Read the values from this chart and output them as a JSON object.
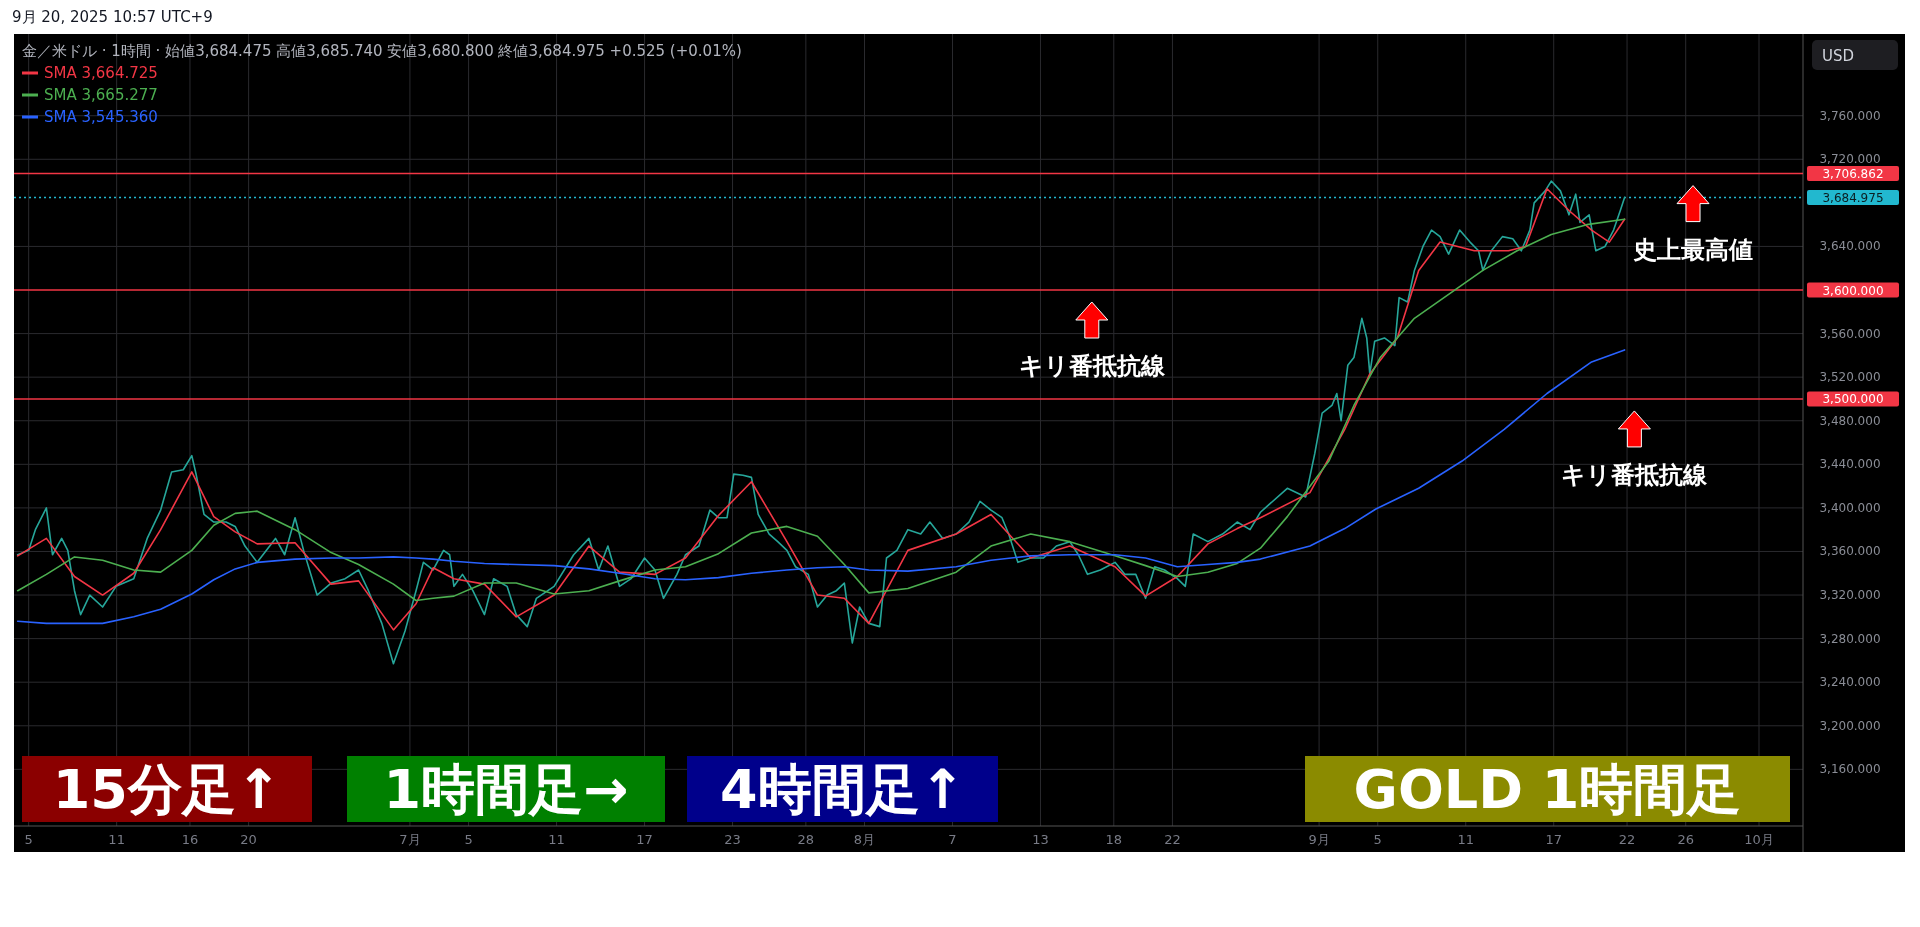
{
  "chart_data": {
    "type": "line",
    "title": "金／米ドル · 1時間 · 始値3,684.475 高値3,685.740 安値3,680.800 終値3,684.975 +0.525 (+0.01%)",
    "subtitle": "9月 20, 2025 10:57 UTC+9",
    "ylabel": "USD",
    "xlim": [
      "2025-06-04T00:00",
      "2025-10-04T00:00"
    ],
    "xticks": [
      {
        "value": "2025-06-05",
        "label": "5"
      },
      {
        "value": "2025-06-11",
        "label": "11"
      },
      {
        "value": "2025-06-16",
        "label": "16"
      },
      {
        "value": "2025-06-20",
        "label": "20"
      },
      {
        "value": "2025-07-01",
        "label": "7月"
      },
      {
        "value": "2025-07-05",
        "label": "5"
      },
      {
        "value": "2025-07-11",
        "label": "11"
      },
      {
        "value": "2025-07-17",
        "label": "17"
      },
      {
        "value": "2025-07-23",
        "label": "23"
      },
      {
        "value": "2025-07-28",
        "label": "28"
      },
      {
        "value": "2025-08-01",
        "label": "8月"
      },
      {
        "value": "2025-08-07",
        "label": "7"
      },
      {
        "value": "2025-08-13",
        "label": "13"
      },
      {
        "value": "2025-08-18",
        "label": "18"
      },
      {
        "value": "2025-08-22",
        "label": "22"
      },
      {
        "value": "2025-09-01",
        "label": "9月"
      },
      {
        "value": "2025-09-05",
        "label": "5"
      },
      {
        "value": "2025-09-11",
        "label": "11"
      },
      {
        "value": "2025-09-17",
        "label": "17"
      },
      {
        "value": "2025-09-22",
        "label": "22"
      },
      {
        "value": "2025-09-26",
        "label": "26"
      },
      {
        "value": "2025-10-01",
        "label": "10月"
      }
    ],
    "ylim": [
      3108,
      3835
    ],
    "yticks": [
      {
        "value": 3160,
        "label": "3,160.000"
      },
      {
        "value": 3200,
        "label": "3,200.000"
      },
      {
        "value": 3240,
        "label": "3,240.000"
      },
      {
        "value": 3280,
        "label": "3,280.000"
      },
      {
        "value": 3320,
        "label": "3,320.000"
      },
      {
        "value": 3360,
        "label": "3,360.000"
      },
      {
        "value": 3400,
        "label": "3,400.000"
      },
      {
        "value": 3440,
        "label": "3,440.000"
      },
      {
        "value": 3480,
        "label": "3,480.000"
      },
      {
        "value": 3520,
        "label": "3,520.000"
      },
      {
        "value": 3560,
        "label": "3,560.000"
      },
      {
        "value": 3640,
        "label": "3,640.000"
      },
      {
        "value": 3720,
        "label": "3,720.000"
      },
      {
        "value": 3760,
        "label": "3,760.000"
      }
    ],
    "grid": true,
    "legend": "top left",
    "series": [
      {
        "color": "#26a69a",
        "x": [
          "2025-06-04T06:00",
          "2025-06-05T00:00",
          "2025-06-05T11:00",
          "2025-06-06T05:00",
          "2025-06-06T15:00",
          "2025-06-07T06:00",
          "2025-06-07T16:00",
          "2025-06-08T03:00",
          "2025-06-08T13:00",
          "2025-06-09T04:00",
          "2025-06-10T01:00",
          "2025-06-10T23:00",
          "2025-06-12T04:00",
          "2025-06-13T02:00",
          "2025-06-14T00:00",
          "2025-06-14T18:00",
          "2025-06-15T13:00",
          "2025-06-16T03:00",
          "2025-06-16T10:00",
          "2025-06-16T23:00",
          "2025-06-17T15:00",
          "2025-06-18T11:00",
          "2025-06-19T02:00",
          "2025-06-19T18:00",
          "2025-06-20T14:00",
          "2025-06-21T20:00",
          "2025-06-22T11:00",
          "2025-06-23T04:00",
          "2025-06-23T18:00",
          "2025-06-24T16:00",
          "2025-06-25T15:00",
          "2025-06-26T14:00",
          "2025-06-27T12:00",
          "2025-06-28T04:00",
          "2025-06-29T02:00",
          "2025-06-29T21:00",
          "2025-06-30T16:00",
          "2025-07-01T10:00",
          "2025-07-01T22:00",
          "2025-07-02T14:00",
          "2025-07-03T07:00",
          "2025-07-03T17:00",
          "2025-07-04T00:00",
          "2025-07-04T14:00",
          "2025-07-05T07:00",
          "2025-07-06T02:00",
          "2025-07-06T17:00",
          "2025-07-07T15:00",
          "2025-07-08T06:00",
          "2025-07-09T00:00",
          "2025-07-09T15:00",
          "2025-07-10T20:00",
          "2025-07-12T04:00",
          "2025-07-13T05:00",
          "2025-07-13T21:00",
          "2025-07-14T12:00",
          "2025-07-15T07:00",
          "2025-07-16T02:00",
          "2025-07-17T00:00",
          "2025-07-17T17:00",
          "2025-07-18T07:00",
          "2025-07-19T05:00",
          "2025-07-19T19:00",
          "2025-07-20T17:00",
          "2025-07-21T11:00",
          "2025-07-22T01:00",
          "2025-07-22T15:00",
          "2025-07-23T02:00",
          "2025-07-23T17:00",
          "2025-07-24T07:00",
          "2025-07-24T18:00",
          "2025-07-25T12:00",
          "2025-07-26T02:00",
          "2025-07-26T17:00",
          "2025-07-27T07:00",
          "2025-07-28T04:00",
          "2025-07-28T19:00",
          "2025-07-29T11:00",
          "2025-07-30T02:00",
          "2025-07-30T15:00",
          "2025-07-31T04:00",
          "2025-07-31T16:00",
          "2025-08-01T07:00",
          "2025-08-02T01:00",
          "2025-08-02T12:00",
          "2025-08-03T05:00",
          "2025-08-03T23:00",
          "2025-08-04T20:00",
          "2025-08-05T11:00",
          "2025-08-06T08:00",
          "2025-08-07T06:00",
          "2025-08-08T03:00",
          "2025-08-08T21:00",
          "2025-08-09T15:00",
          "2025-08-10T09:00",
          "2025-08-10T20:00",
          "2025-08-11T11:00",
          "2025-08-12T08:00",
          "2025-08-13T05:00",
          "2025-08-14T02:00",
          "2025-08-15T00:00",
          "2025-08-15T14:00",
          "2025-08-16T05:00",
          "2025-08-17T02:00",
          "2025-08-18T02:00",
          "2025-08-18T18:00",
          "2025-08-19T12:00",
          "2025-08-20T04:00",
          "2025-08-20T19:00",
          "2025-08-21T11:00",
          "2025-08-22T08:00",
          "2025-08-22T21:00",
          "2025-08-23T10:00",
          "2025-08-24T10:00",
          "2025-08-25T10:00",
          "2025-08-26T10:00",
          "2025-08-27T07:00",
          "2025-08-28T00:00",
          "2025-08-29T20:00",
          "2025-08-31T02:00",
          "2025-08-31T17:00",
          "2025-09-01T05:00",
          "2025-09-01T21:00",
          "2025-09-02T05:00",
          "2025-09-02T12:00",
          "2025-09-02T23:00",
          "2025-09-03T09:00",
          "2025-09-03T22:00",
          "2025-09-04T06:00",
          "2025-09-04T11:00",
          "2025-09-04T19:00",
          "2025-09-05T11:00",
          "2025-09-06T04:00",
          "2025-09-06T11:00",
          "2025-09-07T01:00",
          "2025-09-07T12:00",
          "2025-09-08T02:00",
          "2025-09-08T16:00",
          "2025-09-09T06:00",
          "2025-09-09T20:00",
          "2025-09-10T14:00",
          "2025-09-11T07:00",
          "2025-09-11T21:00",
          "2025-09-12T04:00",
          "2025-09-12T18:00",
          "2025-09-13T12:00",
          "2025-09-14T05:00",
          "2025-09-14T19:00",
          "2025-09-15T09:00",
          "2025-09-15T16:00",
          "2025-09-16T10:00",
          "2025-09-16T20:00",
          "2025-09-17T11:00",
          "2025-09-18T01:00",
          "2025-09-18T12:00",
          "2025-09-18T19:00",
          "2025-09-19T10:00",
          "2025-09-19T21:00",
          "2025-09-20T12:00",
          "2025-09-21T02:00",
          "2025-09-21T13:00",
          "2025-09-21T20:00"
        ],
        "values": [
          3357,
          3361,
          3380,
          3400,
          3357,
          3372,
          3361,
          3324,
          3302,
          3320,
          3309,
          3328,
          3335,
          3372,
          3398,
          3433,
          3435,
          3448,
          3431,
          3394,
          3387,
          3387,
          3383,
          3365,
          3350,
          3372,
          3357,
          3391,
          3361,
          3320,
          3331,
          3335,
          3343,
          3324,
          3294,
          3257,
          3287,
          3324,
          3350,
          3343,
          3361,
          3357,
          3328,
          3339,
          3324,
          3302,
          3335,
          3328,
          3302,
          3291,
          3317,
          3328,
          3357,
          3372,
          3343,
          3365,
          3328,
          3335,
          3354,
          3343,
          3317,
          3339,
          3357,
          3365,
          3398,
          3391,
          3391,
          3431,
          3430,
          3428,
          3394,
          3376,
          3369,
          3361,
          3346,
          3339,
          3309,
          3320,
          3324,
          3331,
          3276,
          3309,
          3294,
          3291,
          3354,
          3361,
          3380,
          3376,
          3387,
          3372,
          3376,
          3387,
          3406,
          3398,
          3391,
          3376,
          3350,
          3354,
          3354,
          3365,
          3369,
          3357,
          3339,
          3343,
          3350,
          3339,
          3339,
          3317,
          3346,
          3343,
          3335,
          3328,
          3376,
          3369,
          3376,
          3387,
          3380,
          3396,
          3418,
          3410,
          3450,
          3487,
          3494,
          3505,
          3480,
          3531,
          3538,
          3574,
          3556,
          3523,
          3553,
          3556,
          3549,
          3593,
          3589,
          3618,
          3640,
          3655,
          3649,
          3633,
          3655,
          3644,
          3636,
          3618,
          3636,
          3649,
          3647,
          3636,
          3655,
          3680,
          3691,
          3700,
          3691,
          3669,
          3688,
          3662,
          3669,
          3636,
          3640,
          3655,
          3673,
          3685
        ]
      },
      {
        "name": "SMA 3,664.725",
        "color": "#f23645",
        "x": [
          "2025-06-04T06:00",
          "2025-06-06T05:00",
          "2025-06-08T03:00",
          "2025-06-10T01:00",
          "2025-06-12T04:00",
          "2025-06-14T00:00",
          "2025-06-16T03:00",
          "2025-06-17T15:00",
          "2025-06-19T02:00",
          "2025-06-20T14:00",
          "2025-06-23T04:00",
          "2025-06-25T15:00",
          "2025-06-27T12:00",
          "2025-06-29T21:00",
          "2025-07-01T10:00",
          "2025-07-02T14:00",
          "2025-07-04T00:00",
          "2025-07-06T02:00",
          "2025-07-08T06:00",
          "2025-07-10T20:00",
          "2025-07-13T05:00",
          "2025-07-15T07:00",
          "2025-07-17T17:00",
          "2025-07-19T19:00",
          "2025-07-22T01:00",
          "2025-07-24T07:00",
          "2025-07-26T17:00",
          "2025-07-28T19:00",
          "2025-07-30T15:00",
          "2025-08-01T07:00",
          "2025-08-03T23:00",
          "2025-08-07T06:00",
          "2025-08-09T15:00",
          "2025-08-12T08:00",
          "2025-08-15T00:00",
          "2025-08-18T02:00",
          "2025-08-20T04:00",
          "2025-08-22T08:00",
          "2025-08-24T10:00",
          "2025-08-26T10:00",
          "2025-08-28T00:00",
          "2025-08-31T09:00",
          "2025-09-02T18:00",
          "2025-09-04T11:00",
          "2025-09-06T08:00",
          "2025-09-07T19:00",
          "2025-09-09T06:00",
          "2025-09-11T14:00",
          "2025-09-13T22:00",
          "2025-09-15T02:00",
          "2025-09-16T13:00",
          "2025-09-18T01:00",
          "2025-09-19T14:00",
          "2025-09-20T19:00",
          "2025-09-21T20:00"
        ],
        "values": [
          3356,
          3372,
          3337,
          3320,
          3340,
          3380,
          3433,
          3392,
          3378,
          3367,
          3368,
          3330,
          3333,
          3288,
          3312,
          3345,
          3335,
          3330,
          3300,
          3320,
          3365,
          3341,
          3339,
          3354,
          3393,
          3424,
          3369,
          3320,
          3317,
          3294,
          3361,
          3376,
          3394,
          3354,
          3365,
          3346,
          3319,
          3337,
          3367,
          3381,
          3391,
          3414,
          3472,
          3523,
          3556,
          3618,
          3644,
          3636,
          3636,
          3640,
          3693,
          3673,
          3655,
          3644,
          3665
        ]
      },
      {
        "name": "SMA 3,665.277",
        "color": "#4caf50",
        "x": [
          "2025-06-04T06:00",
          "2025-06-06T05:00",
          "2025-06-08T03:00",
          "2025-06-10T01:00",
          "2025-06-12T04:00",
          "2025-06-14T00:00",
          "2025-06-16T03:00",
          "2025-06-17T15:00",
          "2025-06-19T02:00",
          "2025-06-20T14:00",
          "2025-06-23T04:00",
          "2025-06-25T15:00",
          "2025-06-27T12:00",
          "2025-06-29T21:00",
          "2025-07-01T10:00",
          "2025-07-02T14:00",
          "2025-07-04T00:00",
          "2025-07-06T02:00",
          "2025-07-08T06:00",
          "2025-07-10T20:00",
          "2025-07-13T05:00",
          "2025-07-15T07:00",
          "2025-07-17T17:00",
          "2025-07-19T19:00",
          "2025-07-22T01:00",
          "2025-07-24T07:00",
          "2025-07-26T17:00",
          "2025-07-28T19:00",
          "2025-07-30T15:00",
          "2025-08-01T07:00",
          "2025-08-03T23:00",
          "2025-08-07T06:00",
          "2025-08-09T15:00",
          "2025-08-12T08:00",
          "2025-08-15T00:00",
          "2025-08-18T02:00",
          "2025-08-20T04:00",
          "2025-08-22T08:00",
          "2025-08-24T10:00",
          "2025-08-26T10:00",
          "2025-08-28T00:00",
          "2025-08-29T20:00",
          "2025-09-01T16:00",
          "2025-09-03T09:00",
          "2025-09-05T04:00",
          "2025-09-07T12:00",
          "2025-09-09T20:00",
          "2025-09-12T04:00",
          "2025-09-14T12:00",
          "2025-09-16T20:00",
          "2025-09-19T06:00",
          "2025-09-21T20:00"
        ],
        "values": [
          3324,
          3339,
          3355,
          3352,
          3343,
          3341,
          3361,
          3384,
          3395,
          3397,
          3380,
          3359,
          3348,
          3330,
          3315,
          3317,
          3319,
          3331,
          3331,
          3321,
          3324,
          3333,
          3343,
          3346,
          3358,
          3377,
          3383,
          3374,
          3348,
          3322,
          3326,
          3341,
          3365,
          3376,
          3369,
          3356,
          3347,
          3337,
          3341,
          3349,
          3363,
          3392,
          3443,
          3494,
          3538,
          3574,
          3596,
          3618,
          3636,
          3651,
          3660,
          3665
        ]
      },
      {
        "name": "SMA 3,545.360",
        "color": "#2962ff",
        "x": [
          "2025-06-04T06:00",
          "2025-06-06T05:00",
          "2025-06-08T03:00",
          "2025-06-10T01:00",
          "2025-06-12T04:00",
          "2025-06-14T00:00",
          "2025-06-16T03:00",
          "2025-06-17T15:00",
          "2025-06-19T02:00",
          "2025-06-20T14:00",
          "2025-06-23T04:00",
          "2025-06-25T15:00",
          "2025-06-27T12:00",
          "2025-06-29T21:00",
          "2025-07-01T10:00",
          "2025-07-02T14:00",
          "2025-07-04T00:00",
          "2025-07-06T02:00",
          "2025-07-08T06:00",
          "2025-07-10T20:00",
          "2025-07-13T05:00",
          "2025-07-15T07:00",
          "2025-07-17T17:00",
          "2025-07-19T19:00",
          "2025-07-22T01:00",
          "2025-07-24T07:00",
          "2025-07-26T17:00",
          "2025-07-28T19:00",
          "2025-07-30T15:00",
          "2025-08-01T07:00",
          "2025-08-03T23:00",
          "2025-08-07T06:00",
          "2025-08-09T15:00",
          "2025-08-12T08:00",
          "2025-08-15T00:00",
          "2025-08-18T02:00",
          "2025-08-20T04:00",
          "2025-08-22T08:00",
          "2025-08-24T10:00",
          "2025-08-26T10:00",
          "2025-08-28T00:00",
          "2025-08-31T09:00",
          "2025-09-02T18:00",
          "2025-09-04T21:00",
          "2025-09-07T19:00",
          "2025-09-10T18:00",
          "2025-09-13T15:00",
          "2025-09-16T13:00",
          "2025-09-19T14:00",
          "2025-09-21T20:00"
        ],
        "values": [
          3296,
          3294,
          3294,
          3294,
          3300,
          3307,
          3321,
          3334,
          3344,
          3350,
          3353,
          3354,
          3354,
          3355,
          3354,
          3353,
          3351,
          3349,
          3348,
          3347,
          3344,
          3340,
          3335,
          3334,
          3336,
          3340,
          3343,
          3345,
          3346,
          3343,
          3342,
          3346,
          3352,
          3356,
          3357,
          3357,
          3354,
          3346,
          3348,
          3350,
          3353,
          3365,
          3381,
          3399,
          3418,
          3443,
          3472,
          3505,
          3534,
          3545
        ]
      }
    ],
    "ref_lines": [
      {
        "axis": "y",
        "value": 3706.862,
        "label": "3,706.862",
        "color": "#f23645",
        "line_style": "solid"
      },
      {
        "axis": "y",
        "value": 3684.975,
        "label": "3,684.975",
        "color": "#22b8cf",
        "line_style": "dotted"
      },
      {
        "axis": "y",
        "value": 3600,
        "label": "3,600.000",
        "color": "#f23645",
        "line_style": "solid"
      },
      {
        "axis": "y",
        "value": 3500,
        "label": "3,500.000",
        "color": "#f23645",
        "line_style": "solid"
      }
    ],
    "annotations": [
      "15分足↑",
      "1時間足→",
      "4時間足↑",
      "GOLD 1時間足",
      {
        "text": "キリ番抵抗線",
        "x": "2025-08-16T12:00",
        "y": 3600
      },
      {
        "text": "キリ番抵抗線",
        "x": "2025-09-22T12:00",
        "y": 3500
      },
      {
        "text": "史上最高値",
        "x": "2025-09-26T12:00",
        "y": 3706.862
      }
    ]
  }
}
